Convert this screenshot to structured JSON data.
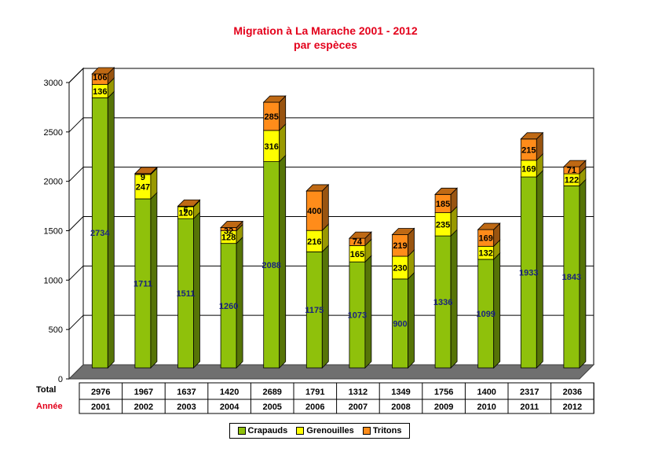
{
  "chart_data": {
    "type": "bar",
    "stacked": true,
    "title": "Migration à La Marache 2001 - 2012",
    "subtitle": "par espèces",
    "categories": [
      "2001",
      "2002",
      "2003",
      "2004",
      "2005",
      "2006",
      "2007",
      "2008",
      "2009",
      "2010",
      "2011",
      "2012"
    ],
    "series": [
      {
        "name": "Crapauds",
        "color": "#8fc10b",
        "values": [
          2734,
          1711,
          1511,
          1260,
          2088,
          1175,
          1073,
          900,
          1336,
          1099,
          1933,
          1843
        ]
      },
      {
        "name": "Grenouilles",
        "color": "#ffff00",
        "values": [
          136,
          247,
          120,
          128,
          316,
          216,
          165,
          230,
          235,
          132,
          169,
          122
        ]
      },
      {
        "name": "Tritons",
        "color": "#ff8c1a",
        "values": [
          106,
          9,
          6,
          32,
          285,
          400,
          74,
          219,
          185,
          169,
          215,
          71
        ]
      }
    ],
    "ylim": [
      0,
      3000
    ],
    "yticks": [
      0,
      500,
      1000,
      1500,
      2000,
      2500,
      3000
    ],
    "grid": true,
    "xlabel": "",
    "ylabel": "",
    "table": {
      "total_label": "Total",
      "year_label": "Année",
      "totals": [
        2976,
        1967,
        1637,
        1420,
        2689,
        1791,
        1312,
        1349,
        1756,
        1400,
        2317,
        2036
      ]
    },
    "legend_position": "bottom"
  }
}
